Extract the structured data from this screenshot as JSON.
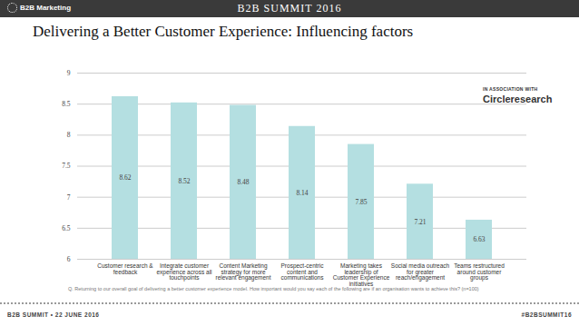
{
  "slide": {
    "logo": "B2B Marketing",
    "header": "B2B SUMMIT 2016",
    "sponsor_intro": "IN ASSOCIATION WITH",
    "sponsor": "Circleresearch",
    "footnote": "Q. Returning to our overall goal of delivering a better customer experience model. How important would you say each of the following are if an organisation wants to achieve this? (n=100)",
    "footer_left": "B2B SUMMIT • 22 JUNE 2016",
    "footer_right": "#B2BSUMMIT16"
  },
  "chart_data": {
    "type": "bar",
    "title": "Delivering a Better Customer Experience: Influencing factors",
    "categories": [
      "Customer research & feedback",
      "Integrate customer experience across all touchpoints",
      "Content Marketing strategy for more relevant engagement",
      "Prospect-centric content and communications",
      "Marketing takes leadership of Customer Experience initiatives",
      "Social media outreach for greater reach/engagement",
      "Teams restructured around customer groups"
    ],
    "values": [
      8.62,
      8.52,
      8.48,
      8.14,
      7.85,
      7.21,
      6.63
    ],
    "color": "#b4dfe1",
    "ylim": [
      6,
      9
    ],
    "yticks": [
      6,
      6.5,
      7,
      7.5,
      8,
      8.5,
      9
    ],
    "grid": true,
    "data_labels": true
  }
}
